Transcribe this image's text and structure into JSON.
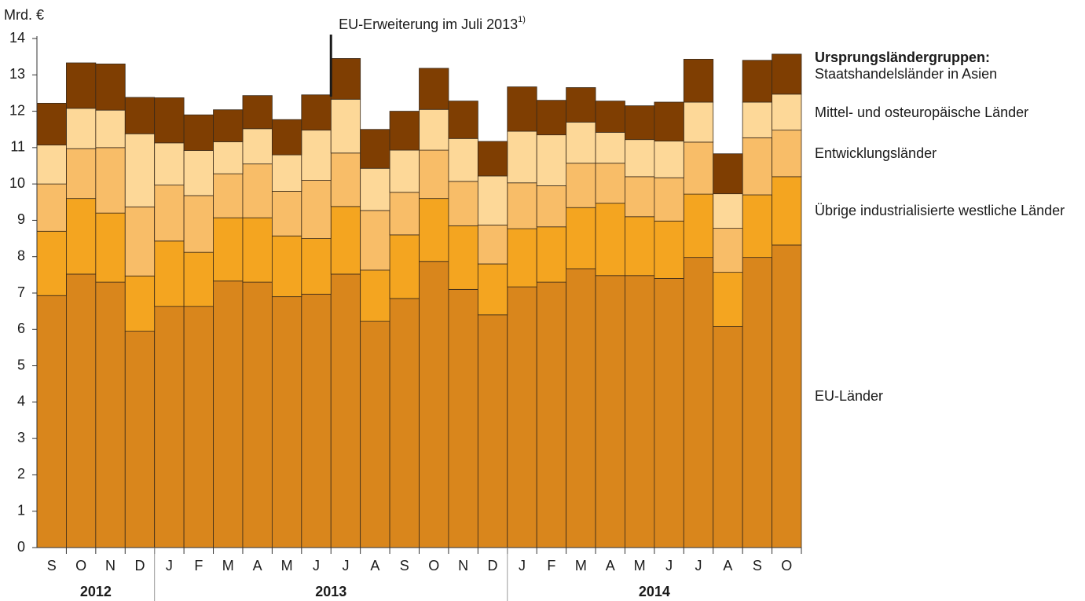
{
  "chart_data": {
    "type": "stacked_bar",
    "y_label": "Mrd. €",
    "annotation": {
      "text": "EU-Erweiterung im Juli 2013",
      "note": "1)",
      "category_index": 10
    },
    "legend_title": "Ursprungsländergruppen:",
    "categories": [
      "S",
      "O",
      "N",
      "D",
      "J",
      "F",
      "M",
      "A",
      "M",
      "J",
      "J",
      "A",
      "S",
      "O",
      "N",
      "D",
      "J",
      "F",
      "M",
      "A",
      "M",
      "J",
      "J",
      "A",
      "S",
      "O"
    ],
    "year_groups": [
      {
        "label": "2012",
        "span": 4
      },
      {
        "label": "2013",
        "span": 12
      },
      {
        "label": "2014",
        "span": 10
      }
    ],
    "ylim": [
      0,
      14
    ],
    "yticks": [
      0,
      1,
      2,
      3,
      4,
      5,
      6,
      7,
      8,
      9,
      10,
      11,
      12,
      13,
      14
    ],
    "series": [
      {
        "name": "EU-Länder",
        "color": "#d9861c",
        "values": [
          6.93,
          7.52,
          7.3,
          5.95,
          6.63,
          6.63,
          7.33,
          7.3,
          6.9,
          6.97,
          7.52,
          6.22,
          6.85,
          7.87,
          7.1,
          6.4,
          7.17,
          7.3,
          7.67,
          7.48,
          7.48,
          7.4,
          7.98,
          6.08,
          7.98,
          8.32
        ]
      },
      {
        "name": "Übrige industrialisierte westliche Länder",
        "color": "#f4a520",
        "values": [
          1.77,
          2.08,
          1.9,
          1.52,
          1.8,
          1.49,
          1.74,
          1.77,
          1.67,
          1.53,
          1.86,
          1.41,
          1.75,
          1.73,
          1.75,
          1.4,
          1.6,
          1.52,
          1.68,
          1.99,
          1.62,
          1.58,
          1.74,
          1.49,
          1.72,
          1.88
        ]
      },
      {
        "name": "Entwicklungsländer",
        "color": "#f8bd68",
        "values": [
          1.3,
          1.37,
          1.8,
          1.9,
          1.54,
          1.56,
          1.21,
          1.48,
          1.23,
          1.6,
          1.47,
          1.64,
          1.17,
          1.33,
          1.22,
          1.07,
          1.26,
          1.13,
          1.22,
          1.1,
          1.1,
          1.19,
          1.43,
          1.21,
          1.57,
          1.28
        ]
      },
      {
        "name": "Mittel- und osteuropäische Länder",
        "color": "#fdd898",
        "values": [
          1.07,
          1.11,
          1.03,
          2.01,
          1.16,
          1.24,
          0.88,
          0.97,
          1.0,
          1.38,
          1.48,
          1.16,
          1.16,
          1.12,
          1.18,
          1.35,
          1.42,
          1.4,
          1.13,
          0.85,
          1.02,
          1.01,
          1.1,
          0.95,
          0.98,
          0.99
        ]
      },
      {
        "name": "Staatshandelsländer in Asien",
        "color": "#7f3e02",
        "values": [
          1.15,
          1.25,
          1.27,
          1.0,
          1.24,
          0.98,
          0.88,
          0.91,
          0.97,
          0.97,
          1.12,
          1.07,
          1.07,
          1.13,
          1.03,
          0.95,
          1.22,
          0.95,
          0.95,
          0.86,
          0.93,
          1.07,
          1.18,
          1.1,
          1.15,
          1.1
        ]
      }
    ]
  }
}
